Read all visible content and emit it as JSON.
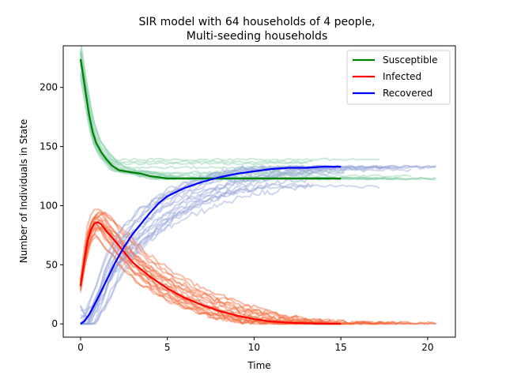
{
  "chart_data": {
    "type": "line",
    "title_line1": "SIR model with 64 households of 4 people,",
    "title_line2": "Multi-seeding households",
    "xlabel": "Time",
    "ylabel": "Number of Individuals in State",
    "xlim": [
      -1.0,
      21.6
    ],
    "ylim": [
      -11.2,
      235.2
    ],
    "xticks": [
      0,
      5,
      10,
      15,
      20
    ],
    "yticks": [
      0,
      50,
      100,
      150,
      200
    ],
    "legend_position": "top-right",
    "colors": {
      "susceptible": "#008000",
      "infected": "#ff0000",
      "recovered": "#0000ff",
      "susceptible_traj": "#8fd1b0",
      "infected_traj": "#f36b3c",
      "recovered_traj": "#9aa6da"
    },
    "series": [
      {
        "name": "Susceptible",
        "key": "susceptible",
        "x": [
          0,
          0.1,
          0.3,
          0.5,
          0.7,
          0.9,
          1.2,
          1.5,
          1.8,
          2.2,
          2.6,
          3.0,
          3.5,
          4.0,
          4.5,
          5.0,
          6.0,
          7.0,
          8.0,
          10.0,
          12.0,
          15.0
        ],
        "y": [
          224,
          215,
          195,
          176,
          162,
          153,
          145,
          139,
          134,
          130,
          129,
          128,
          127,
          125,
          124,
          123,
          123,
          123,
          123,
          123,
          123,
          123
        ]
      },
      {
        "name": "Infected",
        "key": "infected",
        "x": [
          0,
          0.2,
          0.4,
          0.6,
          0.8,
          1.0,
          1.2,
          1.5,
          2.0,
          2.5,
          3.0,
          4.0,
          5.0,
          6.0,
          7.0,
          8.0,
          9.0,
          10.0,
          11.0,
          12.0,
          13.0,
          14.0,
          15.0
        ],
        "y": [
          32,
          52,
          70,
          80,
          85,
          86,
          84,
          78,
          70,
          61,
          52,
          40,
          30,
          22,
          16,
          11,
          7,
          4,
          2,
          1,
          0.5,
          0.2,
          0
        ]
      },
      {
        "name": "Recovered",
        "key": "recovered",
        "x": [
          0,
          0.2,
          0.5,
          1.0,
          1.5,
          2.0,
          2.5,
          3.0,
          3.5,
          4.0,
          4.5,
          5.0,
          6.0,
          7.0,
          8.0,
          9.0,
          10.0,
          11.0,
          12.0,
          13.0,
          14.0,
          15.0
        ],
        "y": [
          0,
          2,
          8,
          22,
          37,
          52,
          65,
          76,
          85,
          94,
          102,
          108,
          115,
          120,
          124,
          127,
          129,
          131,
          132,
          132,
          133,
          133
        ]
      }
    ]
  }
}
